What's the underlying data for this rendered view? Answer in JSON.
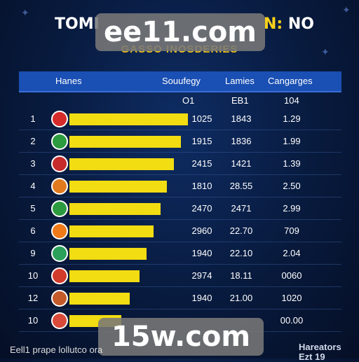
{
  "title": {
    "left": "TOMI",
    "right": "N:",
    "right2": " NO"
  },
  "subtitle": "GASSO INOSDERIES",
  "watermarks": {
    "top": "ee11.com",
    "bottom": "15w.com"
  },
  "columns": [
    "Hanes",
    "Souufegy",
    "Lamies",
    "Cangarges"
  ],
  "subheaders": [
    "O1",
    "EB1",
    "104"
  ],
  "rows": [
    {
      "rank": "1",
      "bar": 1.0,
      "c1": "1025",
      "c2": "1843",
      "c3": "1.29",
      "logo": "#d62b2b"
    },
    {
      "rank": "2",
      "bar": 0.94,
      "c1": "1915",
      "c2": "1836",
      "c3": "1.99",
      "logo": "#2c9a3f"
    },
    {
      "rank": "3",
      "bar": 0.88,
      "c1": "2415",
      "c2": "1421",
      "c3": "1.39",
      "logo": "#c72a2a"
    },
    {
      "rank": "4",
      "bar": 0.82,
      "c1": "1810",
      "c2": "28.55",
      "c3": "2.50",
      "logo": "#e07a1f"
    },
    {
      "rank": "5",
      "bar": 0.77,
      "c1": "2470",
      "c2": "2471",
      "c3": "2.99",
      "logo": "#2c9a3f"
    },
    {
      "rank": "6",
      "bar": 0.71,
      "c1": "2960",
      "c2": "22.70",
      "c3": "709",
      "logo": "#f07a1a"
    },
    {
      "rank": "9",
      "bar": 0.65,
      "c1": "1940",
      "c2": "22.10",
      "c3": "2.04",
      "logo": "#2aa05a"
    },
    {
      "rank": "10",
      "bar": 0.59,
      "c1": "2974",
      "c2": "18.11",
      "c3": "0060",
      "logo": "#d23a2a"
    },
    {
      "rank": "12",
      "bar": 0.51,
      "c1": "1940",
      "c2": "21.00",
      "c3": "1020",
      "logo": "#c45a2a"
    },
    {
      "rank": "10",
      "bar": 0.44,
      "c1": "",
      "c2": "",
      "c3": "00.00",
      "logo": "#d94a3a"
    }
  ],
  "footer": {
    "left": "Eell1 prape lollutco ora",
    "right1": "Hareators",
    "right2": "Ezt 19"
  }
}
